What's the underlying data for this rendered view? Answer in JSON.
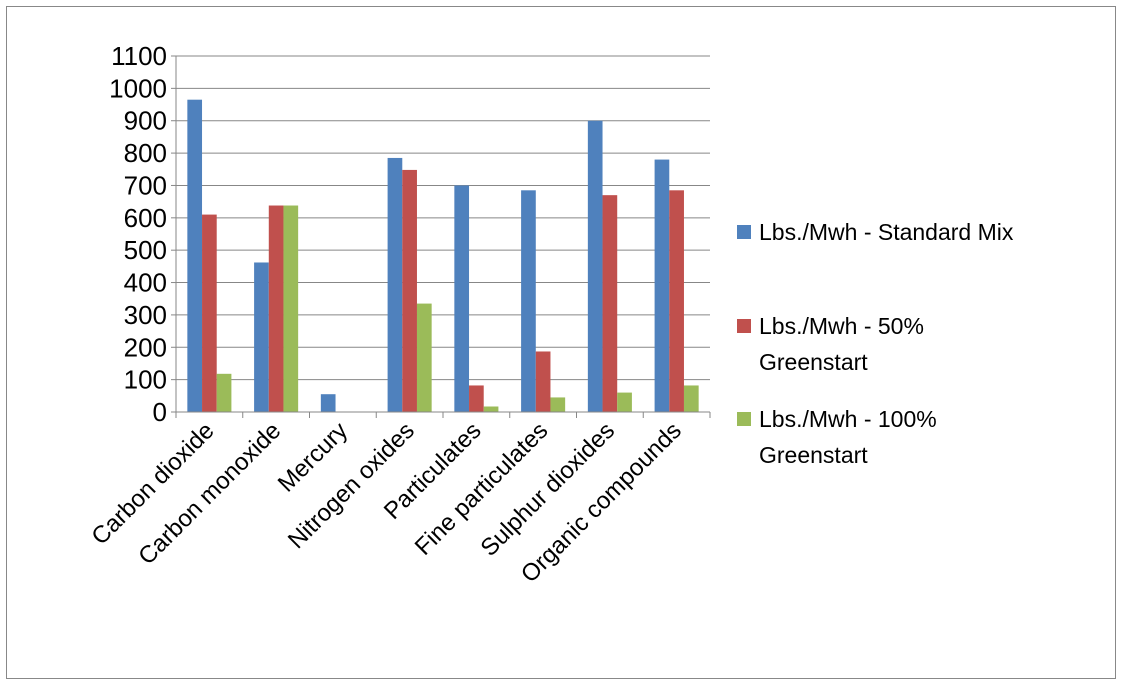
{
  "chart_data": {
    "type": "bar",
    "title": "",
    "xlabel": "",
    "ylabel": "",
    "ylim": [
      0,
      1100
    ],
    "yticks": [
      0,
      100,
      200,
      300,
      400,
      500,
      600,
      700,
      800,
      900,
      1000,
      1100
    ],
    "grid": true,
    "legend": "right",
    "categories": [
      "Carbon dioxide",
      "Carbon monoxide",
      "Mercury",
      "Nitrogen oxides",
      "Particulates",
      "Fine particulates",
      "Sulphur dioxides",
      "Organic compounds"
    ],
    "series": [
      {
        "name": "Lbs./Mwh - Standard Mix",
        "name_lines": [
          "Lbs./Mwh - Standard Mix"
        ],
        "color": "#4f81bd",
        "values": [
          965,
          462,
          55,
          785,
          700,
          685,
          900,
          780
        ]
      },
      {
        "name": "Lbs./Mwh - 50% Greenstart",
        "name_lines": [
          "Lbs./Mwh - 50%",
          "Greenstart"
        ],
        "color": "#c0504d",
        "values": [
          610,
          638,
          0,
          748,
          82,
          187,
          670,
          685
        ]
      },
      {
        "name": "Lbs./Mwh - 100% Greenstart",
        "name_lines": [
          "Lbs./Mwh - 100%",
          "Greenstart"
        ],
        "color": "#9bbb59",
        "values": [
          118,
          638,
          0,
          335,
          17,
          45,
          60,
          82
        ]
      }
    ]
  }
}
